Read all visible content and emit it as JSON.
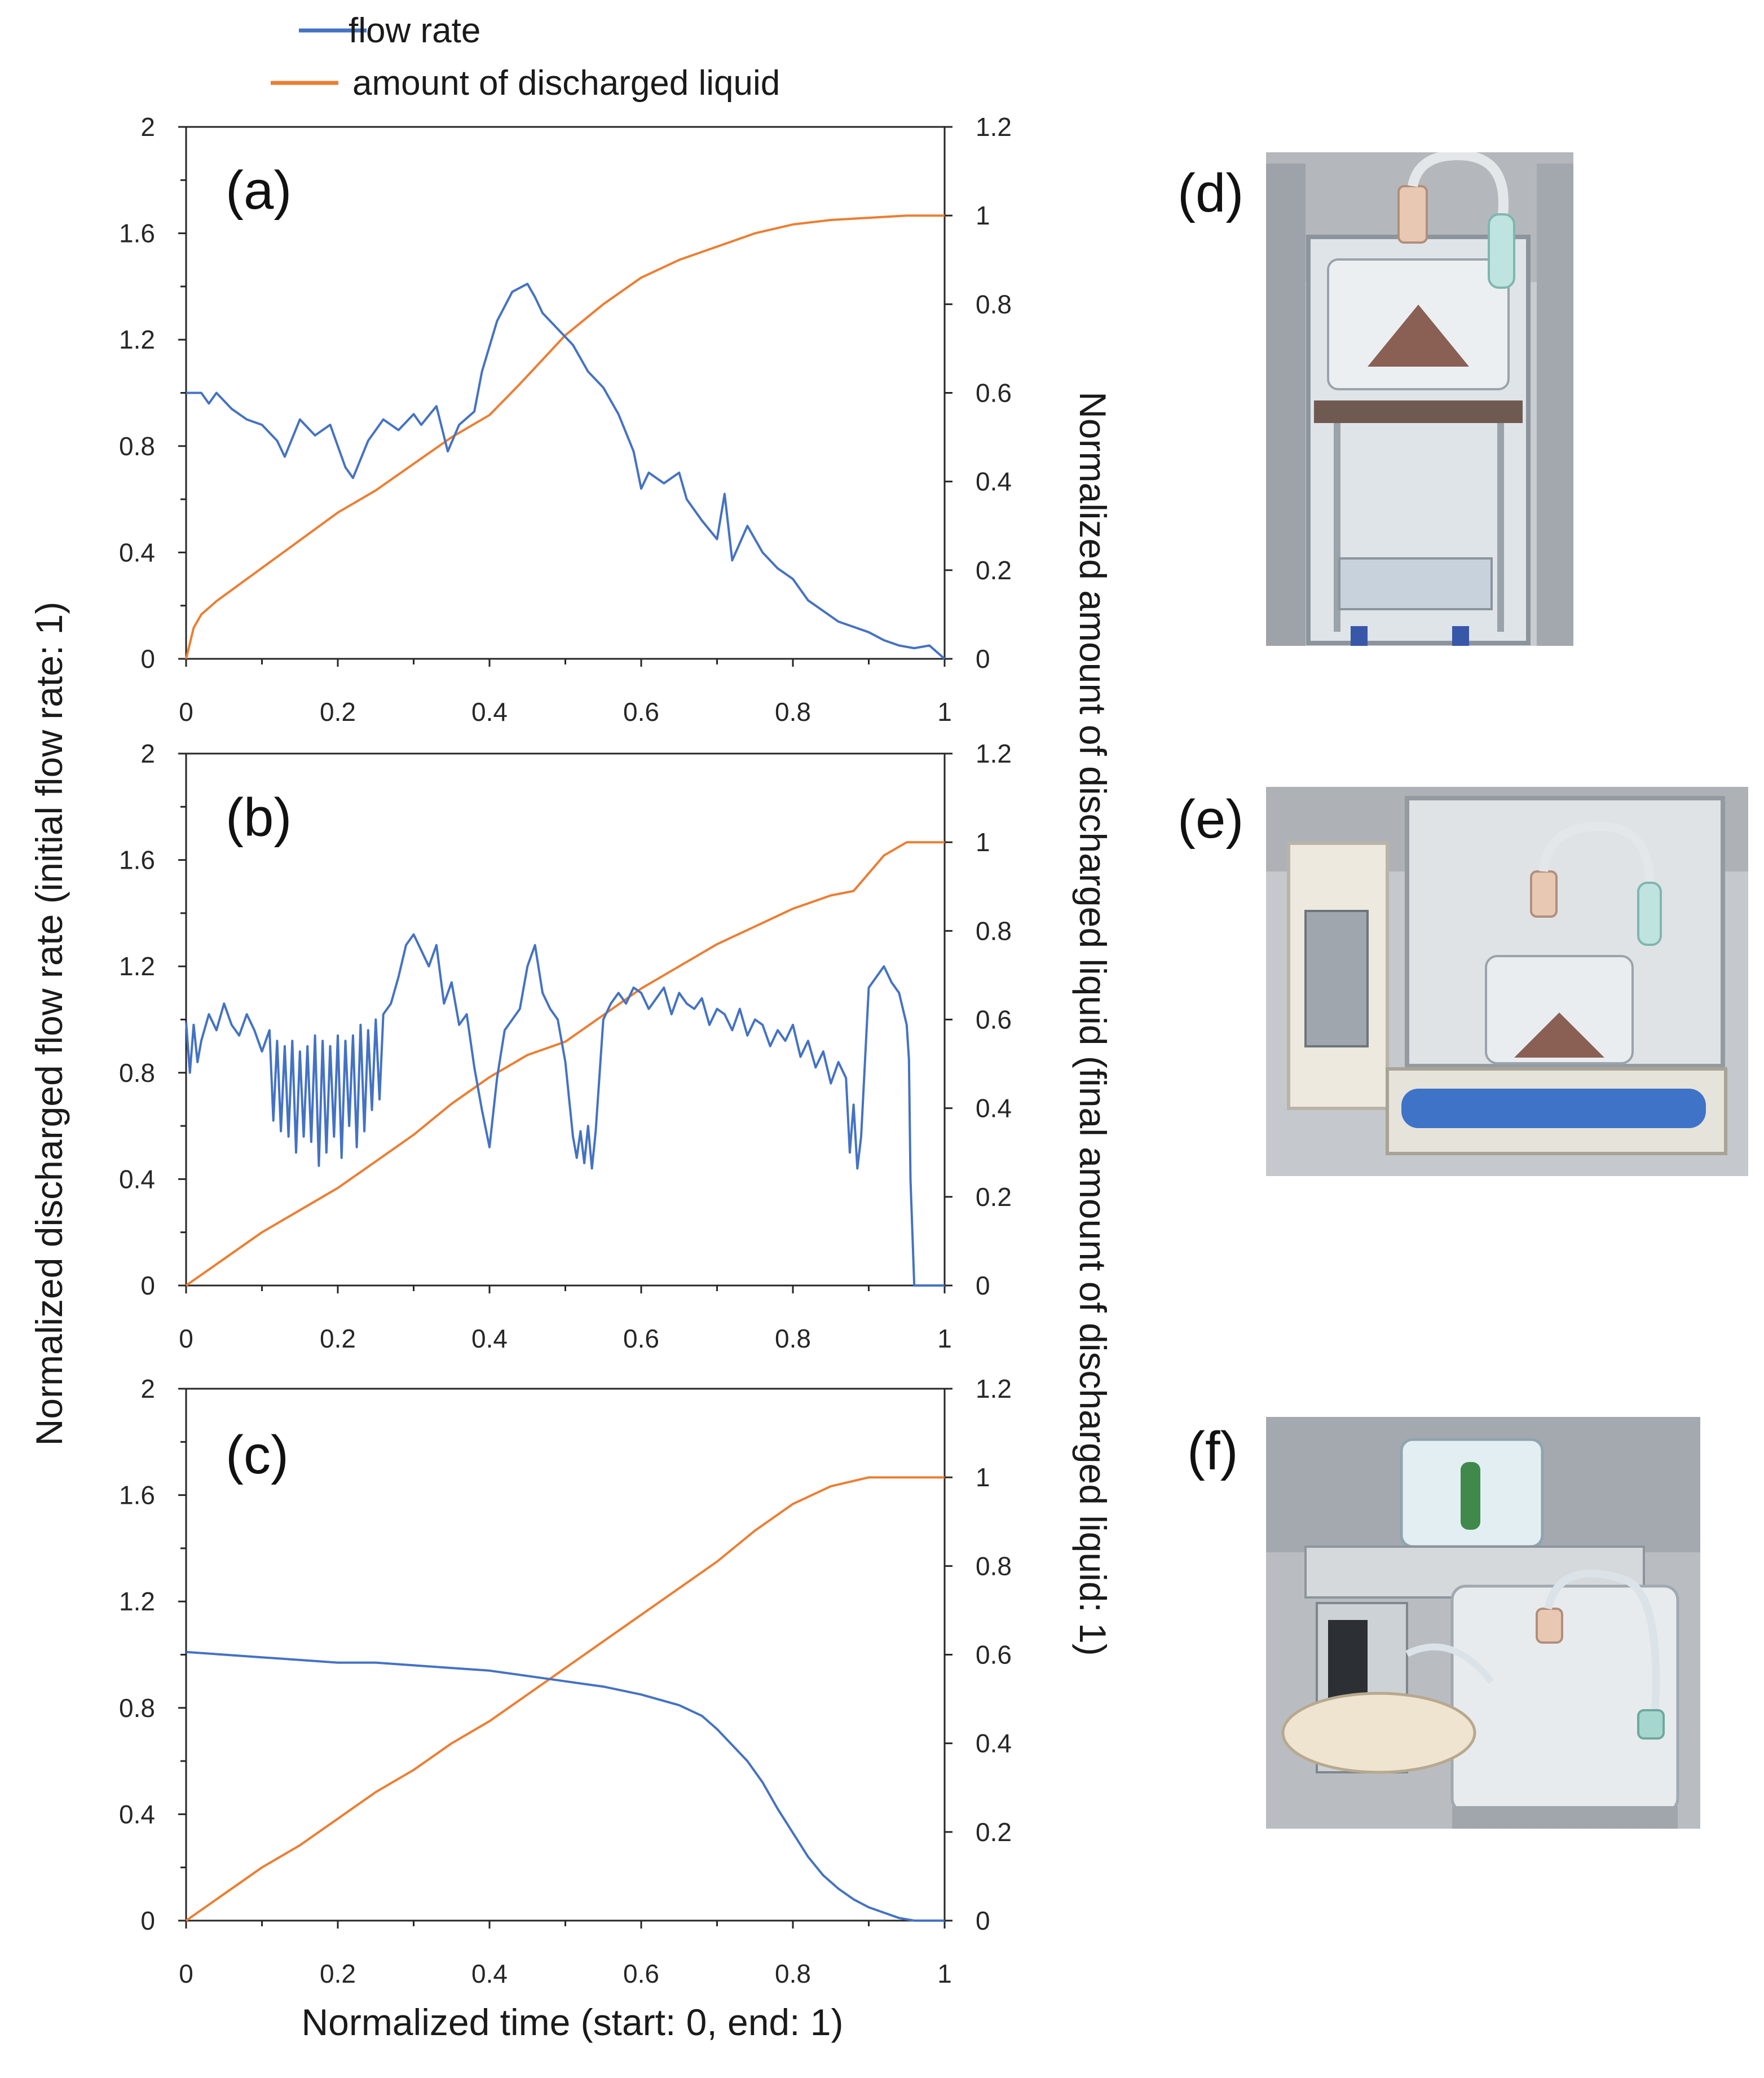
{
  "legend": {
    "flow": "flow rate",
    "amount": "amount of discharged liquid"
  },
  "colors": {
    "flow": "#4472c4",
    "amount": "#ed7d31",
    "axis": "#262626"
  },
  "axis_titles": {
    "left": "Normalized discharged flow rate (initial flow rate: 1)",
    "right": "Normalized amount of discharged liquid (final amount of discharged liquid: 1)",
    "bottom": "Normalized time (start: 0, end: 1)"
  },
  "chart_data": [
    {
      "type": "line",
      "panel": "(a)",
      "xlim": [
        0,
        1
      ],
      "ylim_left": [
        0,
        2
      ],
      "ylim_right": [
        0,
        1.2
      ],
      "x_ticks": [
        "0",
        "0.2",
        "0.4",
        "0.6",
        "0.8",
        "1"
      ],
      "left_ticks": [
        "0",
        "0.4",
        "0.8",
        "1.2",
        "1.6",
        "2"
      ],
      "right_ticks": [
        "0",
        "0.2",
        "0.4",
        "0.6",
        "0.8",
        "1",
        "1.2"
      ],
      "series": [
        {
          "name": "flow rate",
          "axis": "left",
          "x": [
            0,
            0.02,
            0.03,
            0.04,
            0.06,
            0.08,
            0.1,
            0.12,
            0.13,
            0.15,
            0.17,
            0.19,
            0.21,
            0.22,
            0.24,
            0.26,
            0.28,
            0.3,
            0.31,
            0.33,
            0.345,
            0.36,
            0.38,
            0.39,
            0.41,
            0.43,
            0.45,
            0.46,
            0.47,
            0.49,
            0.51,
            0.53,
            0.55,
            0.57,
            0.59,
            0.6,
            0.61,
            0.63,
            0.65,
            0.66,
            0.68,
            0.7,
            0.71,
            0.72,
            0.74,
            0.76,
            0.78,
            0.8,
            0.82,
            0.84,
            0.86,
            0.88,
            0.9,
            0.92,
            0.94,
            0.96,
            0.98,
            1.0
          ],
          "y": [
            1.0,
            1.0,
            0.96,
            1.0,
            0.94,
            0.9,
            0.88,
            0.82,
            0.76,
            0.9,
            0.84,
            0.88,
            0.72,
            0.68,
            0.82,
            0.9,
            0.86,
            0.92,
            0.88,
            0.95,
            0.78,
            0.88,
            0.93,
            1.08,
            1.27,
            1.38,
            1.41,
            1.36,
            1.3,
            1.24,
            1.18,
            1.08,
            1.02,
            0.92,
            0.78,
            0.64,
            0.7,
            0.66,
            0.7,
            0.6,
            0.52,
            0.45,
            0.62,
            0.37,
            0.5,
            0.4,
            0.34,
            0.3,
            0.22,
            0.18,
            0.14,
            0.12,
            0.1,
            0.07,
            0.05,
            0.04,
            0.05,
            0.0
          ]
        },
        {
          "name": "amount of discharged liquid",
          "axis": "right",
          "x": [
            0,
            0.01,
            0.02,
            0.04,
            0.08,
            0.12,
            0.16,
            0.2,
            0.25,
            0.3,
            0.35,
            0.4,
            0.44,
            0.5,
            0.55,
            0.6,
            0.65,
            0.7,
            0.75,
            0.8,
            0.85,
            0.9,
            0.95,
            1.0
          ],
          "y": [
            0,
            0.07,
            0.1,
            0.13,
            0.18,
            0.23,
            0.28,
            0.33,
            0.38,
            0.44,
            0.5,
            0.55,
            0.62,
            0.73,
            0.8,
            0.86,
            0.9,
            0.93,
            0.96,
            0.98,
            0.99,
            0.995,
            1.0,
            1.0
          ]
        }
      ]
    },
    {
      "type": "line",
      "panel": "(b)",
      "xlim": [
        0,
        1
      ],
      "ylim_left": [
        0,
        2
      ],
      "ylim_right": [
        0,
        1.2
      ],
      "x_ticks": [
        "0",
        "0.2",
        "0.4",
        "0.6",
        "0.8",
        "1"
      ],
      "left_ticks": [
        "0",
        "0.4",
        "0.8",
        "1.2",
        "1.6",
        "2"
      ],
      "right_ticks": [
        "0",
        "0.2",
        "0.4",
        "0.6",
        "0.8",
        "1",
        "1.2"
      ],
      "series": [
        {
          "name": "flow rate",
          "axis": "left",
          "x": [
            0,
            0.005,
            0.01,
            0.015,
            0.02,
            0.03,
            0.04,
            0.05,
            0.06,
            0.07,
            0.08,
            0.09,
            0.1,
            0.11,
            0.115,
            0.12,
            0.125,
            0.13,
            0.135,
            0.14,
            0.145,
            0.15,
            0.155,
            0.16,
            0.165,
            0.17,
            0.175,
            0.18,
            0.185,
            0.19,
            0.195,
            0.2,
            0.205,
            0.21,
            0.215,
            0.22,
            0.225,
            0.23,
            0.235,
            0.24,
            0.245,
            0.25,
            0.255,
            0.26,
            0.27,
            0.28,
            0.29,
            0.3,
            0.31,
            0.32,
            0.33,
            0.34,
            0.35,
            0.36,
            0.37,
            0.38,
            0.39,
            0.4,
            0.41,
            0.42,
            0.43,
            0.44,
            0.45,
            0.46,
            0.47,
            0.48,
            0.49,
            0.5,
            0.51,
            0.515,
            0.52,
            0.525,
            0.53,
            0.535,
            0.54,
            0.55,
            0.56,
            0.57,
            0.58,
            0.59,
            0.6,
            0.61,
            0.62,
            0.63,
            0.64,
            0.65,
            0.66,
            0.67,
            0.68,
            0.69,
            0.7,
            0.71,
            0.72,
            0.73,
            0.74,
            0.75,
            0.76,
            0.77,
            0.78,
            0.79,
            0.8,
            0.81,
            0.82,
            0.83,
            0.84,
            0.85,
            0.86,
            0.87,
            0.875,
            0.88,
            0.885,
            0.89,
            0.9,
            0.91,
            0.92,
            0.93,
            0.94,
            0.95,
            0.953,
            0.955,
            0.96,
            1.0
          ],
          "y": [
            0.99,
            0.8,
            0.98,
            0.84,
            0.92,
            1.02,
            0.96,
            1.06,
            0.98,
            0.94,
            1.02,
            0.96,
            0.88,
            0.96,
            0.62,
            0.92,
            0.58,
            0.9,
            0.56,
            0.92,
            0.5,
            0.88,
            0.56,
            0.9,
            0.54,
            0.94,
            0.45,
            0.92,
            0.5,
            0.9,
            0.56,
            0.94,
            0.48,
            0.92,
            0.6,
            0.94,
            0.52,
            0.98,
            0.58,
            0.96,
            0.66,
            1.0,
            0.7,
            1.02,
            1.06,
            1.16,
            1.28,
            1.32,
            1.26,
            1.2,
            1.28,
            1.06,
            1.14,
            0.98,
            1.02,
            0.82,
            0.66,
            0.52,
            0.78,
            0.96,
            1.0,
            1.04,
            1.2,
            1.28,
            1.1,
            1.04,
            1.0,
            0.84,
            0.56,
            0.48,
            0.58,
            0.46,
            0.6,
            0.44,
            0.58,
            1.0,
            1.06,
            1.1,
            1.06,
            1.12,
            1.1,
            1.04,
            1.08,
            1.12,
            1.02,
            1.1,
            1.06,
            1.04,
            1.08,
            0.98,
            1.04,
            1.02,
            0.96,
            1.04,
            0.94,
            1.0,
            0.98,
            0.9,
            0.96,
            0.92,
            0.98,
            0.86,
            0.92,
            0.82,
            0.88,
            0.76,
            0.84,
            0.78,
            0.5,
            0.68,
            0.44,
            0.56,
            1.12,
            1.16,
            1.2,
            1.14,
            1.1,
            0.98,
            0.85,
            0.4,
            0.0,
            0.0
          ]
        },
        {
          "name": "amount of discharged liquid",
          "axis": "right",
          "x": [
            0,
            0.05,
            0.1,
            0.15,
            0.2,
            0.25,
            0.3,
            0.35,
            0.4,
            0.45,
            0.5,
            0.55,
            0.6,
            0.65,
            0.7,
            0.75,
            0.8,
            0.85,
            0.88,
            0.9,
            0.92,
            0.95,
            1.0
          ],
          "y": [
            0,
            0.06,
            0.12,
            0.17,
            0.22,
            0.28,
            0.34,
            0.41,
            0.47,
            0.52,
            0.55,
            0.61,
            0.67,
            0.72,
            0.77,
            0.81,
            0.85,
            0.88,
            0.89,
            0.93,
            0.97,
            1.0,
            1.0
          ]
        }
      ]
    },
    {
      "type": "line",
      "panel": "(c)",
      "xlim": [
        0,
        1
      ],
      "ylim_left": [
        0,
        2
      ],
      "ylim_right": [
        0,
        1.2
      ],
      "x_ticks": [
        "0",
        "0.2",
        "0.4",
        "0.6",
        "0.8",
        "1"
      ],
      "left_ticks": [
        "0",
        "0.4",
        "0.8",
        "1.2",
        "1.6",
        "2"
      ],
      "right_ticks": [
        "0",
        "0.2",
        "0.4",
        "0.6",
        "0.8",
        "1",
        "1.2"
      ],
      "series": [
        {
          "name": "flow rate",
          "axis": "left",
          "x": [
            0,
            0.05,
            0.1,
            0.15,
            0.2,
            0.25,
            0.3,
            0.35,
            0.4,
            0.45,
            0.5,
            0.55,
            0.6,
            0.65,
            0.68,
            0.7,
            0.72,
            0.74,
            0.76,
            0.78,
            0.8,
            0.82,
            0.84,
            0.86,
            0.88,
            0.9,
            0.92,
            0.94,
            0.96,
            0.98,
            1.0
          ],
          "y": [
            1.01,
            1.0,
            0.99,
            0.98,
            0.97,
            0.97,
            0.96,
            0.95,
            0.94,
            0.92,
            0.9,
            0.88,
            0.85,
            0.81,
            0.77,
            0.72,
            0.66,
            0.6,
            0.52,
            0.42,
            0.33,
            0.24,
            0.17,
            0.12,
            0.08,
            0.05,
            0.03,
            0.01,
            0.0,
            0.0,
            0.0
          ]
        },
        {
          "name": "amount of discharged liquid",
          "axis": "right",
          "x": [
            0,
            0.05,
            0.1,
            0.15,
            0.2,
            0.25,
            0.3,
            0.35,
            0.4,
            0.45,
            0.5,
            0.55,
            0.6,
            0.65,
            0.7,
            0.75,
            0.8,
            0.85,
            0.9,
            0.95,
            1.0
          ],
          "y": [
            0,
            0.06,
            0.12,
            0.17,
            0.23,
            0.29,
            0.34,
            0.4,
            0.45,
            0.51,
            0.57,
            0.63,
            0.69,
            0.75,
            0.81,
            0.88,
            0.94,
            0.98,
            1.0,
            1.0,
            1.0
          ]
        }
      ]
    }
  ],
  "photos": [
    {
      "label": "(d)",
      "icon": "apparatus-photo-icon"
    },
    {
      "label": "(e)",
      "icon": "apparatus-photo-icon"
    },
    {
      "label": "(f)",
      "icon": "apparatus-photo-icon"
    }
  ]
}
